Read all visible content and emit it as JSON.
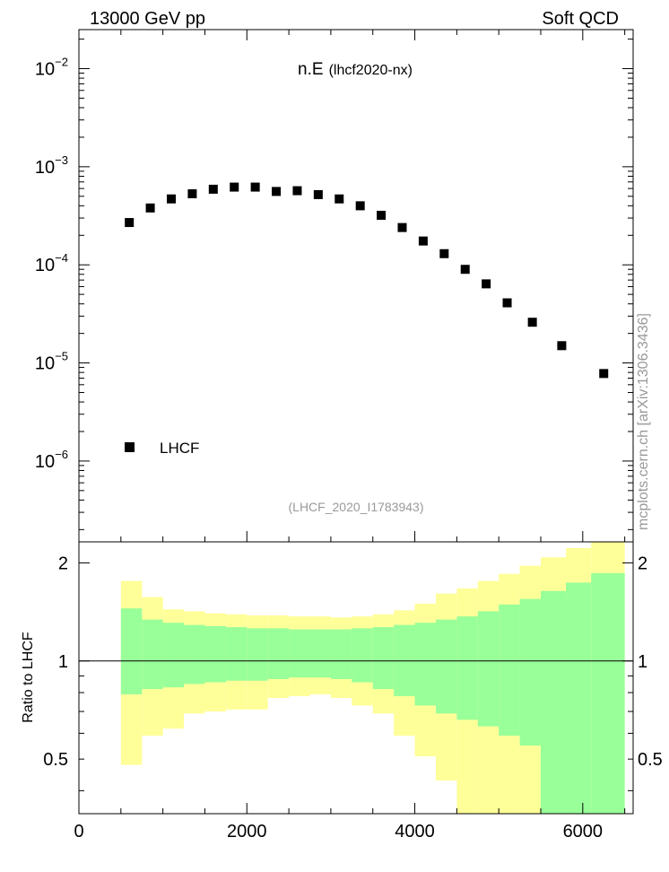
{
  "header": {
    "left": "13000 GeV pp",
    "right": "Soft QCD"
  },
  "side_label": "mcplots.cern.ch [arXiv:1306.3436]",
  "chart_data": [
    {
      "type": "scatter",
      "title": "n.E",
      "title_suffix": "(lhcf2020-nx)",
      "subtitle": "(LHCF_2020_I1783943)",
      "log_y": true,
      "xlim": [
        0,
        6600
      ],
      "ylim": [
        1.5e-07,
        0.025
      ],
      "y_ticks": [
        {
          "value": 1e-06,
          "base": "10",
          "exp": "−6"
        },
        {
          "value": 1e-05,
          "base": "10",
          "exp": "−5"
        },
        {
          "value": 0.0001,
          "base": "10",
          "exp": "−4"
        },
        {
          "value": 0.001,
          "base": "10",
          "exp": "−3"
        },
        {
          "value": 0.01,
          "base": "10",
          "exp": "−2"
        }
      ],
      "series": [
        {
          "name": "LHCF",
          "color": "#000000",
          "marker": "square",
          "x": [
            600,
            850,
            1100,
            1350,
            1600,
            1850,
            2100,
            2350,
            2600,
            2850,
            3100,
            3350,
            3600,
            3850,
            4100,
            4350,
            4600,
            4850,
            5100,
            5400,
            5750,
            6250
          ],
          "y": [
            0.00027,
            0.00038,
            0.00047,
            0.00053,
            0.00059,
            0.00062,
            0.00062,
            0.00056,
            0.00057,
            0.00052,
            0.00047,
            0.0004,
            0.00032,
            0.00024,
            0.000175,
            0.00013,
            9e-05,
            6.4e-05,
            4.1e-05,
            2.6e-05,
            1.5e-05,
            7.8e-06
          ]
        }
      ]
    },
    {
      "type": "area",
      "ylabel": "Ratio to LHCF",
      "xlim": [
        0,
        6600
      ],
      "ylim": [
        0.34,
        2.32
      ],
      "x_ticks": [
        "0",
        "2000",
        "4000",
        "6000"
      ],
      "y_ticks": [
        "0.5",
        "1",
        "2"
      ],
      "reference_line": 1,
      "bin_edges": [
        500,
        750,
        1000,
        1250,
        1500,
        1750,
        2000,
        2250,
        2500,
        2750,
        3000,
        3250,
        3500,
        3750,
        4000,
        4250,
        4500,
        4750,
        5000,
        5250,
        5500,
        5800,
        6100,
        6500
      ],
      "bands": [
        {
          "name": "outer",
          "color": "#ffff99",
          "upper": [
            1.76,
            1.57,
            1.44,
            1.42,
            1.4,
            1.39,
            1.38,
            1.38,
            1.37,
            1.37,
            1.36,
            1.37,
            1.39,
            1.43,
            1.5,
            1.61,
            1.67,
            1.76,
            1.85,
            1.96,
            2.08,
            2.22,
            2.34
          ],
          "lower": [
            0.48,
            0.59,
            0.62,
            0.69,
            0.7,
            0.71,
            0.71,
            0.77,
            0.78,
            0.79,
            0.77,
            0.73,
            0.69,
            0.59,
            0.51,
            0.43,
            0.32,
            0.32,
            0.32,
            0.32,
            0.32,
            0.32,
            0.32
          ]
        },
        {
          "name": "inner",
          "color": "#99ff99",
          "upper": [
            1.45,
            1.34,
            1.31,
            1.29,
            1.28,
            1.27,
            1.26,
            1.26,
            1.25,
            1.25,
            1.25,
            1.26,
            1.27,
            1.29,
            1.31,
            1.34,
            1.37,
            1.42,
            1.49,
            1.55,
            1.64,
            1.74,
            1.86
          ],
          "lower": [
            0.79,
            0.82,
            0.83,
            0.85,
            0.86,
            0.87,
            0.87,
            0.88,
            0.89,
            0.89,
            0.88,
            0.86,
            0.82,
            0.78,
            0.73,
            0.69,
            0.66,
            0.63,
            0.59,
            0.55,
            0.32,
            0.32,
            0.32
          ]
        }
      ]
    }
  ]
}
